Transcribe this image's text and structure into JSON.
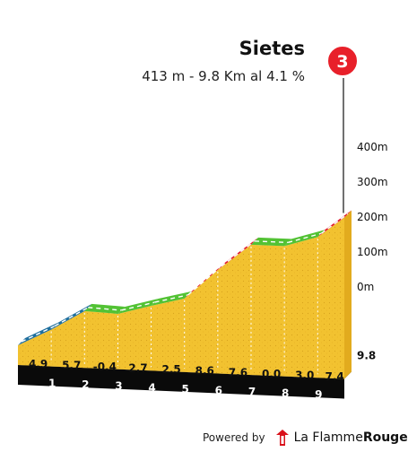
{
  "climb": {
    "name": "Sietes",
    "summary": "413 m - 9.8 Km al 4.1 %",
    "number": "3",
    "badge_color": "#e8202a"
  },
  "chart_data": {
    "type": "area",
    "title": "Sietes",
    "subtitle": "413 m - 9.8 Km al 4.1 %",
    "x_unit": "km",
    "y_ticks": [
      "400m",
      "300m",
      "200m",
      "100m",
      "0m"
    ],
    "y_values": [
      400,
      300,
      200,
      100,
      0
    ],
    "end_km_label": "9.8",
    "km_ticks": [
      "1",
      "2",
      "3",
      "4",
      "5",
      "6",
      "7",
      "8",
      "9"
    ],
    "segments": [
      {
        "from_km": 0,
        "to_km": 1,
        "gradient_label": "4.9",
        "gradient": 4.9,
        "color": "#1f6f9e"
      },
      {
        "from_km": 1,
        "to_km": 2,
        "gradient_label": "5.7",
        "gradient": 5.7,
        "color": "#1f6f9e"
      },
      {
        "from_km": 2,
        "to_km": 3,
        "gradient_label": "-0.4",
        "gradient": -0.4,
        "color": "#52c234"
      },
      {
        "from_km": 3,
        "to_km": 4,
        "gradient_label": "2.7",
        "gradient": 2.7,
        "color": "#52c234"
      },
      {
        "from_km": 4,
        "to_km": 5,
        "gradient_label": "2.5",
        "gradient": 2.5,
        "color": "#52c234"
      },
      {
        "from_km": 5,
        "to_km": 6,
        "gradient_label": "8.6",
        "gradient": 8.6,
        "color": "#e0192a"
      },
      {
        "from_km": 6,
        "to_km": 7,
        "gradient_label": "7.6",
        "gradient": 7.6,
        "color": "#e0192a"
      },
      {
        "from_km": 7,
        "to_km": 8,
        "gradient_label": "0.0",
        "gradient": 0.0,
        "color": "#52c234"
      },
      {
        "from_km": 8,
        "to_km": 9,
        "gradient_label": "3.0",
        "gradient": 3.0,
        "color": "#52c234"
      },
      {
        "from_km": 9,
        "to_km": 9.8,
        "gradient_label": "7.4",
        "gradient": 7.4,
        "color": "#e0192a"
      }
    ],
    "grid": false,
    "legend": "none",
    "fill_color": "#f2c12e"
  },
  "footer": {
    "powered_label": "Powered by",
    "brand_part1": "La Flamme",
    "brand_part2": "Rouge",
    "logo_color": "#d9111b"
  }
}
